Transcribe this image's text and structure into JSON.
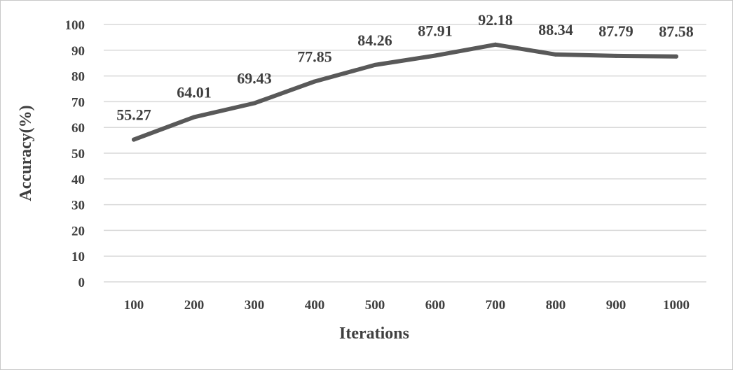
{
  "chart_data": {
    "type": "line",
    "categories": [
      "100",
      "200",
      "300",
      "400",
      "500",
      "600",
      "700",
      "800",
      "900",
      "1000"
    ],
    "series": [
      {
        "values": [
          55.27,
          64.01,
          69.43,
          77.85,
          84.26,
          87.91,
          92.18,
          88.34,
          87.79,
          87.58
        ],
        "labels": [
          "55.27",
          "64.01",
          "69.43",
          "77.85",
          "84.26",
          "87.91",
          "92.18",
          "88.34",
          "87.79",
          "87.58"
        ],
        "color": "#595959"
      }
    ],
    "xlabel": "Iterations",
    "ylabel": "Accuracy(%)",
    "ylim": [
      0,
      100
    ],
    "yticks": [
      "0",
      "10",
      "20",
      "30",
      "40",
      "50",
      "60",
      "70",
      "80",
      "90",
      "100"
    ],
    "grid": true,
    "legend": "none",
    "gridColor": "#d9d9d9",
    "textColor": "#3f3f3f"
  }
}
